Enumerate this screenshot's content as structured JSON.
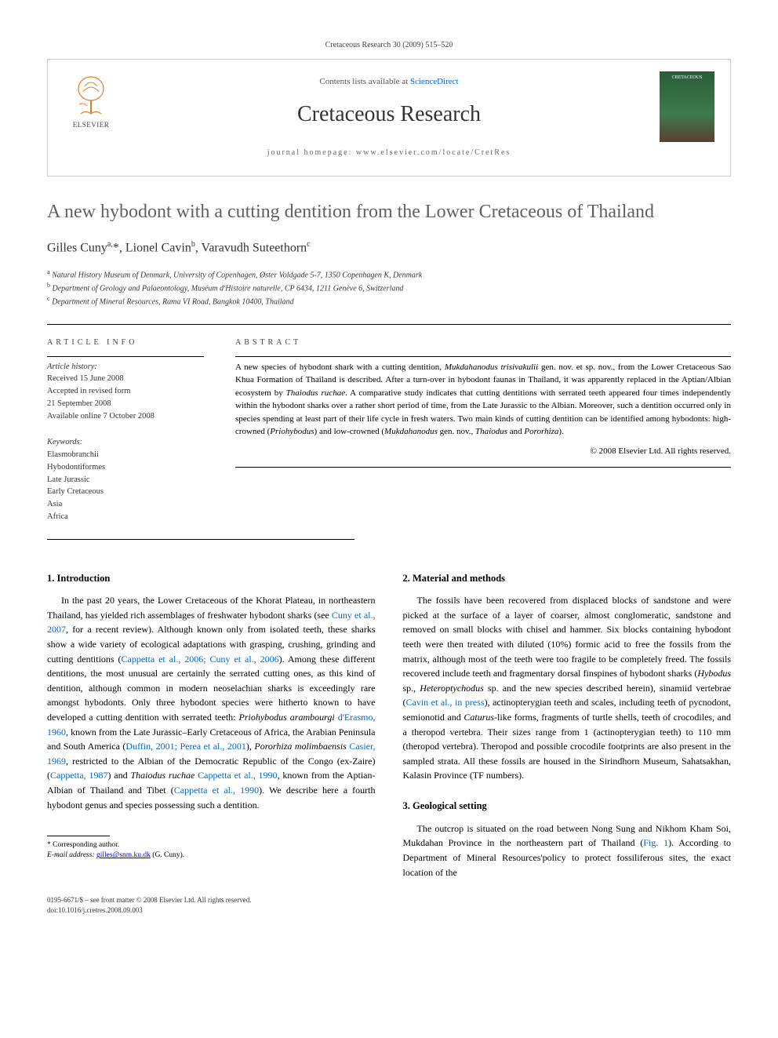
{
  "citation": "Cretaceous Research 30 (2009) 515–520",
  "header": {
    "contents_prefix": "Contents lists available at ",
    "contents_link": "ScienceDirect",
    "journal_name": "Cretaceous Research",
    "homepage_prefix": "journal homepage: ",
    "homepage_url": "www.elsevier.com/locate/CretRes",
    "elsevier_label": "ELSEVIER",
    "cover_label": "CRETACEOUS"
  },
  "title": "A new hybodont with a cutting dentition from the Lower Cretaceous of Thailand",
  "authors_html": "Gilles Cuny<sup>a,</sup>*, Lionel Cavin<sup>b</sup>, Varavudh Suteethorn<sup>c</sup>",
  "affiliations": [
    "Natural History Museum of Denmark, University of Copenhagen, Øster Voldgade 5-7, 1350 Copenhagen K, Denmark",
    "Department of Geology and Palaeontology, Muséum d'Histoire naturelle, CP 6434, 1211 Genève 6, Switzerland",
    "Department of Mineral Resources, Rama VI Road, Bangkok 10400, Thailand"
  ],
  "aff_labels": [
    "a",
    "b",
    "c"
  ],
  "labels": {
    "article_info": "ARTICLE INFO",
    "abstract": "ABSTRACT"
  },
  "history": {
    "title": "Article history:",
    "received": "Received 15 June 2008",
    "revised": "Accepted in revised form",
    "revised_date": "21 September 2008",
    "online": "Available online 7 October 2008"
  },
  "keywords": {
    "title": "Keywords:",
    "items": [
      "Elasmobranchii",
      "Hybodontiformes",
      "Late Jurassic",
      "Early Cretaceous",
      "Asia",
      "Africa"
    ]
  },
  "abstract": "A new species of hybodont shark with a cutting dentition, <em>Mukdahanodus trisivakulii</em> gen. nov. et sp. nov., from the Lower Cretaceous Sao Khua Formation of Thailand is described. After a turn-over in hybodont faunas in Thailand, it was apparently replaced in the Aptian/Albian ecosystem by <em>Thaiodus ruchae</em>. A comparative study indicates that cutting dentitions with serrated teeth appeared four times independently within the hybodont sharks over a rather short period of time, from the Late Jurassic to the Albian. Moreover, such a dentition occurred only in species spending at least part of their life cycle in fresh waters. Two main kinds of cutting dentition can be identified among hybodonts: high-crowned (<em>Priohybodus</em>) and low-crowned (<em>Mukdahanodus</em> gen. nov., <em>Thaiodus</em> and <em>Pororhiza</em>).",
  "copyright": "© 2008 Elsevier Ltd. All rights reserved.",
  "sections": {
    "s1": {
      "heading": "1. Introduction",
      "body": "In the past 20 years, the Lower Cretaceous of the Khorat Plateau, in northeastern Thailand, has yielded rich assemblages of freshwater hybodont sharks (see <a href='#' data-interactable='true'>Cuny et al., 2007</a>, for a recent review). Although known only from isolated teeth, these sharks show a wide variety of ecological adaptations with grasping, crushing, grinding and cutting dentitions (<a href='#' data-interactable='true'>Cappetta et al., 2006; Cuny et al., 2006</a>). Among these different dentitions, the most unusual are certainly the serrated cutting ones, as this kind of dentition, although common in modern neoselachian sharks is exceedingly rare amongst hybodonts. Only three hybodont species were hitherto known to have developed a cutting dentition with serrated teeth: <em>Priohybodus arambourgi</em> <a href='#' data-interactable='true'>d'Erasmo, 1960</a>, known from the Late Jurassic–Early Cretaceous of Africa, the Arabian Peninsula and South America (<a href='#' data-interactable='true'>Duffin, 2001; Perea et al., 2001</a>), <em>Pororhiza molimbaensis</em> <a href='#' data-interactable='true'>Casier, 1969</a>, restricted to the Albian of the Democratic Republic of the Congo (ex-Zaire) (<a href='#' data-interactable='true'>Cappetta, 1987</a>) and <em>Thaiodus ruchae</em> <a href='#' data-interactable='true'>Cappetta et al., 1990</a>, known from the Aptian-Albian of Thailand and Tibet (<a href='#' data-interactable='true'>Cappetta et al., 1990</a>). We describe here a fourth hybodont genus and species possessing such a dentition."
    },
    "s2": {
      "heading": "2. Material and methods",
      "body": "The fossils have been recovered from displaced blocks of sandstone and were picked at the surface of a layer of coarser, almost conglomeratic, sandstone and removed on small blocks with chisel and hammer. Six blocks containing hybodont teeth were then treated with diluted (10%) formic acid to free the fossils from the matrix, although most of the teeth were too fragile to be completely freed. The fossils recovered include teeth and fragmentary dorsal finspines of hybodont sharks (<em>Hybodus</em> sp., <em>Heteroptychodus</em> sp. and the new species described herein), sinamiid vertebrae (<a href='#' data-interactable='true'>Cavin et al., in press</a>), actinopterygian teeth and scales, including teeth of pycnodont, semionotid and <em>Caturus</em>-like forms, fragments of turtle shells, teeth of crocodiles, and a theropod vertebra. Their sizes range from 1 (actinopterygian teeth) to 110 mm (theropod vertebra). Theropod and possible crocodile footprints are also present in the sampled strata. All these fossils are housed in the Sirindhorn Museum, Sahatsakhan, Kalasin Province (TF numbers)."
    },
    "s3": {
      "heading": "3. Geological setting",
      "body": "The outcrop is situated on the road between Nong Sung and Nikhom Kham Soi, Mukdahan Province in the northeastern part of Thailand (<a href='#' data-interactable='true'>Fig. 1</a>). According to Department of Mineral Resources'policy to protect fossiliferous sites, the exact location of the"
    }
  },
  "footnotes": {
    "corr": "* Corresponding author.",
    "email_label": "E-mail address:",
    "email": "gilles@snm.ku.dk",
    "email_suffix": "(G. Cuny)."
  },
  "footer": {
    "issn": "0195-6671/$ – see front matter © 2008 Elsevier Ltd. All rights reserved.",
    "doi": "doi:10.1016/j.cretres.2008.09.003"
  },
  "colors": {
    "link": "#0066cc",
    "title_gray": "#606060",
    "border": "#cccccc"
  }
}
